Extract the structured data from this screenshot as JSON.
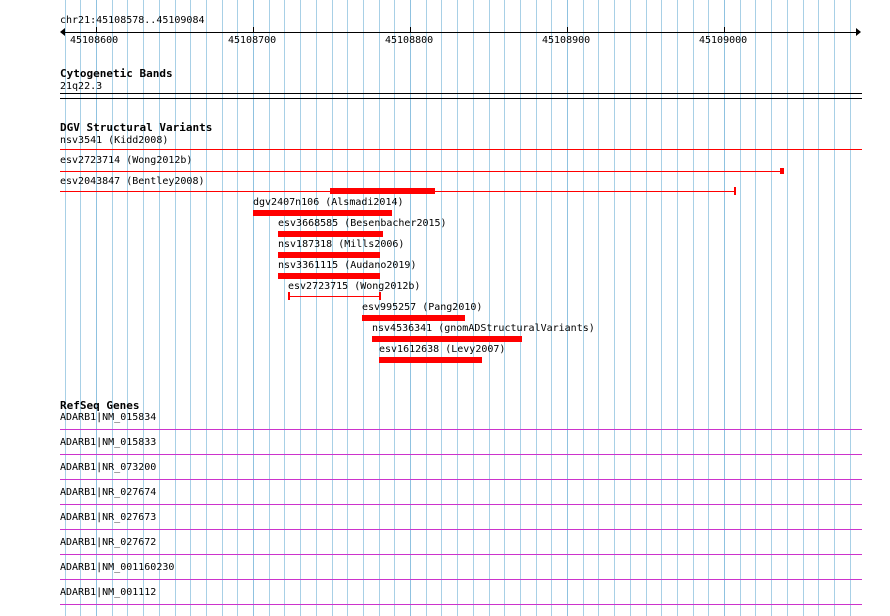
{
  "ruler": {
    "location": "chr21:45108578..45109084",
    "ticks": [
      "45108600",
      "45108700",
      "45108800",
      "45108900",
      "45109000"
    ]
  },
  "cytoband": {
    "title": "Cytogenetic Bands",
    "band": "21q22.3"
  },
  "dgv": {
    "title": "DGV Structural Variants",
    "color": "#ff0000",
    "variants": [
      "nsv3541 (Kidd2008)",
      "esv2723714 (Wong2012b)",
      "esv2043847 (Bentley2008)",
      "dgv2407n106 (Alsmadi2014)",
      "esv3668585 (Besenbacher2015)",
      "nsv187318 (Mills2006)",
      "nsv3361115 (Audano2019)",
      "esv2723715 (Wong2012b)",
      "esv995257 (Pang2010)",
      "nsv4536341 (gnomADStructuralVariants)",
      "esv1612638 (Levy2007)"
    ]
  },
  "refseq": {
    "title": "RefSeq Genes",
    "color": "#cc33cc",
    "transcripts": [
      "ADARB1|NM_015834",
      "ADARB1|NM_015833",
      "ADARB1|NR_073200",
      "ADARB1|NR_027674",
      "ADARB1|NR_027673",
      "ADARB1|NR_027672",
      "ADARB1|NM_001160230",
      "ADARB1|NM_001112"
    ]
  },
  "colors": {
    "grid": "#a8d0e6",
    "variant": "#ff0000",
    "transcript": "#cc33cc"
  }
}
